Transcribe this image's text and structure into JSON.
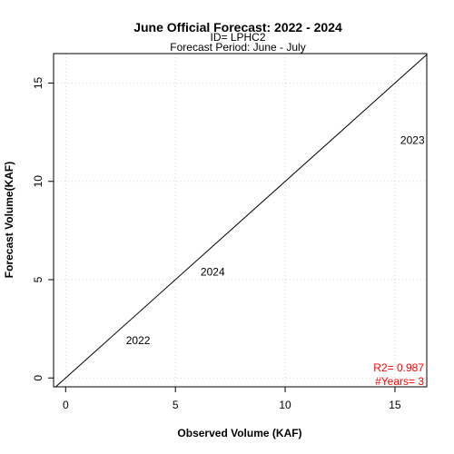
{
  "chart_data": {
    "type": "scatter",
    "title": "June Official Forecast: 2022 - 2024",
    "subtitle_1": "ID= LPHC2",
    "subtitle_2": "Forecast Period:  June - July",
    "xlabel": "Observed Volume (KAF)",
    "ylabel": "Forecast Volume(KAF)",
    "xlim": [
      -0.55,
      16.45
    ],
    "ylim": [
      -0.45,
      16.5
    ],
    "xticks": [
      0,
      5,
      10,
      15
    ],
    "yticks": [
      0,
      5,
      10,
      15
    ],
    "grid": true,
    "reference_line": "1:1",
    "points": [
      {
        "label": "2022",
        "x": 3.3,
        "y": 1.9
      },
      {
        "label": "2023",
        "x": 15.8,
        "y": 12.1
      },
      {
        "label": "2024",
        "x": 6.7,
        "y": 5.4
      }
    ],
    "stats": {
      "r2": "R2=  0.987",
      "years": "#Years=  3",
      "color": "#ff0000"
    }
  }
}
